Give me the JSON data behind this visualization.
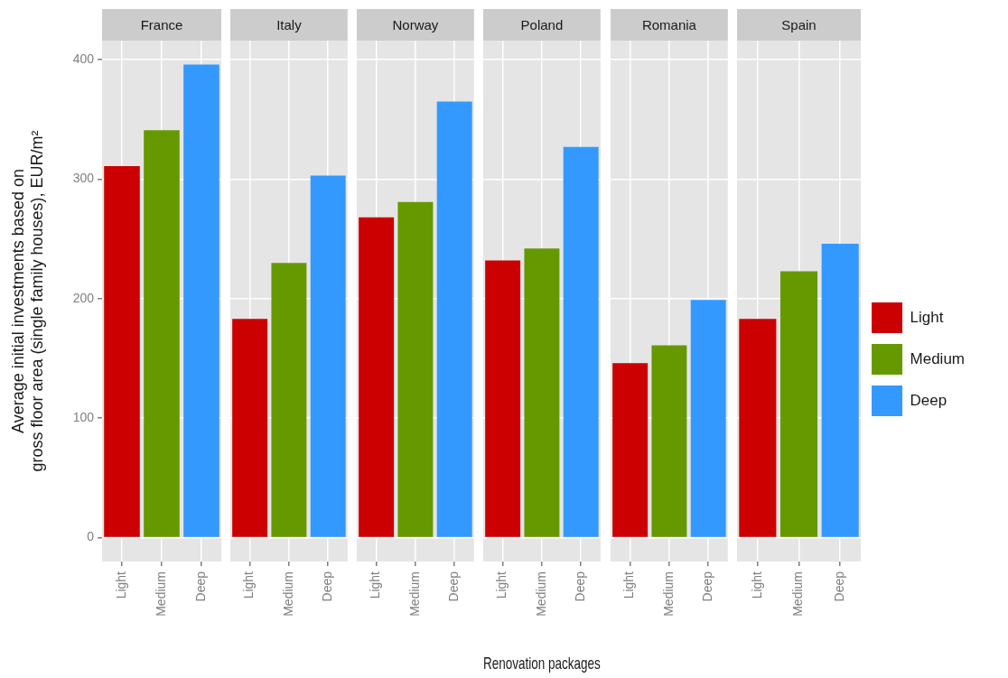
{
  "chart_data": [
    {
      "type": "bar",
      "title": "France",
      "categories": [
        "Light",
        "Medium",
        "Deep"
      ],
      "values": [
        311,
        341,
        396
      ],
      "colors": [
        "#cc0000",
        "#669900",
        "#3399ff"
      ],
      "ylim": [
        -20,
        416
      ],
      "yticks": [
        0,
        100,
        200,
        300,
        400
      ],
      "grid": true,
      "ylabel": "Average initial investments based on\ngross floor area (single family houses), EUR/m²"
    },
    {
      "type": "bar",
      "title": "Italy",
      "categories": [
        "Light",
        "Medium",
        "Deep"
      ],
      "values": [
        183,
        230,
        303
      ],
      "colors": [
        "#cc0000",
        "#669900",
        "#3399ff"
      ],
      "ylim": [
        -20,
        416
      ],
      "yticks": [
        0,
        100,
        200,
        300,
        400
      ],
      "grid": true,
      "tick_labels": "x"
    },
    {
      "type": "bar",
      "title": "Norway",
      "categories": [
        "Light",
        "Medium",
        "Deep"
      ],
      "values": [
        268,
        281,
        365
      ],
      "colors": [
        "#cc0000",
        "#669900",
        "#3399ff"
      ],
      "ylim": [
        -20,
        416
      ],
      "yticks": [
        0,
        100,
        200,
        300,
        400
      ],
      "grid": true,
      "tick_labels": "x"
    },
    {
      "type": "bar",
      "title": "Poland",
      "categories": [
        "Light",
        "Medium",
        "Deep"
      ],
      "values": [
        232,
        242,
        327
      ],
      "colors": [
        "#cc0000",
        "#669900",
        "#3399ff"
      ],
      "ylim": [
        -20,
        416
      ],
      "yticks": [
        0,
        100,
        200,
        300,
        400
      ],
      "grid": true,
      "tick_labels": "x",
      "xlabel": "Renovation packages"
    },
    {
      "type": "bar",
      "title": "Romania",
      "categories": [
        "Light",
        "Medium",
        "Deep"
      ],
      "values": [
        146,
        161,
        199
      ],
      "colors": [
        "#cc0000",
        "#669900",
        "#3399ff"
      ],
      "ylim": [
        -20,
        416
      ],
      "yticks": [
        0,
        100,
        200,
        300,
        400
      ],
      "grid": true,
      "tick_labels": "x"
    },
    {
      "type": "bar",
      "title": "Spain",
      "categories": [
        "Light",
        "Medium",
        "Deep"
      ],
      "series": [
        {
          "name": "Light",
          "color": "#cc0000",
          "values": [
            183,
            null,
            null
          ]
        },
        {
          "name": "Medium",
          "color": "#669900",
          "values": [
            null,
            223,
            null
          ]
        },
        {
          "name": "Deep",
          "color": "#3399ff",
          "values": [
            null,
            null,
            246
          ]
        }
      ],
      "ylim": [
        -20,
        416
      ],
      "yticks": [
        0,
        100,
        200,
        300,
        400
      ],
      "grid": true,
      "tick_labels": "x",
      "legend": "right"
    }
  ]
}
